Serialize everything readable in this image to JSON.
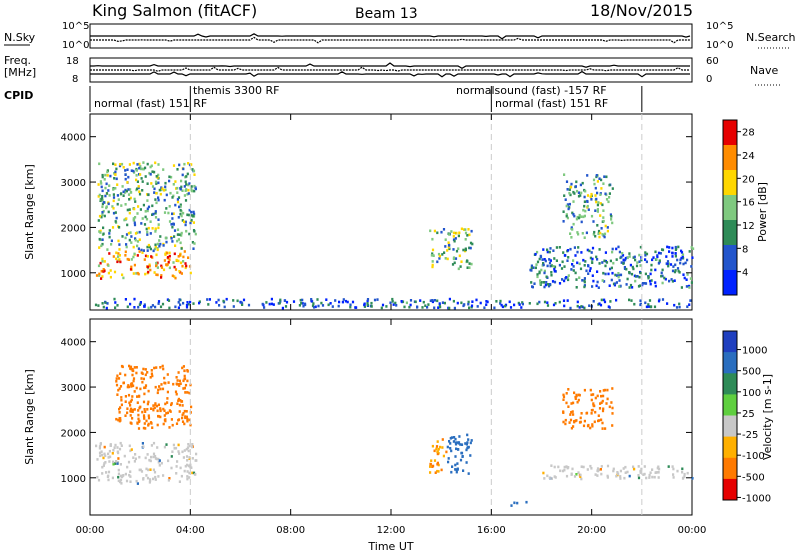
{
  "header": {
    "station": "King Salmon (fitACF)",
    "beam": "Beam 13",
    "date": "18/Nov/2015"
  },
  "status_panel": {
    "left_labels": [
      "N.Sky",
      "Freq.",
      "[MHz]",
      "CPID"
    ],
    "right_labels": [
      "N.Search",
      "Nave"
    ],
    "left_ticks": [
      "10^5",
      "10^0",
      "18",
      "8"
    ],
    "right_ticks": [
      "10^5",
      "10^0",
      "60",
      "0"
    ],
    "cpid_labels": [
      "normal (fast) 151 RF",
      "themis 3300 RF",
      "normalsound (fast) -157 RF",
      "normal (fast) 151 RF"
    ]
  },
  "chart_data": [
    {
      "type": "heatmap",
      "title": "Power",
      "ylabel": "Slant Range [km]",
      "xlabel": "",
      "x_ticks": [
        "00:00",
        "04:00",
        "08:00",
        "12:00",
        "16:00",
        "20:00",
        "00:00"
      ],
      "x_range_hours": [
        0,
        24
      ],
      "ylim": [
        180,
        4500
      ],
      "y_ticks": [
        1000,
        2000,
        3000,
        4000
      ],
      "colorbar": {
        "label": "Power [dB]",
        "ticks": [
          4,
          8,
          12,
          16,
          20,
          24,
          28
        ],
        "range": [
          0,
          30
        ],
        "colors": [
          "#0022ff",
          "#2255cc",
          "#2e8b57",
          "#7fc97f",
          "#ffd700",
          "#ff8c00",
          "#e60000"
        ]
      },
      "scatter_regions": [
        {
          "t": [
            0.2,
            4.0
          ],
          "r": [
            900,
            1500
          ],
          "value": 22
        },
        {
          "t": [
            0.3,
            4.2
          ],
          "r": [
            1500,
            3500
          ],
          "value": 12
        },
        {
          "t": [
            13.5,
            15.2
          ],
          "r": [
            1100,
            2000
          ],
          "value": 14
        },
        {
          "t": [
            17.5,
            24.0
          ],
          "r": [
            700,
            1600
          ],
          "value": 8
        },
        {
          "t": [
            18.8,
            20.8
          ],
          "r": [
            1800,
            3200
          ],
          "value": 12
        },
        {
          "t": [
            0.0,
            24.0
          ],
          "r": [
            250,
            450
          ],
          "value": 6
        }
      ],
      "mode_change_times": [
        4.0,
        16.0,
        22.0
      ]
    },
    {
      "type": "heatmap",
      "title": "Velocity",
      "ylabel": "Slant Range [km]",
      "xlabel": "Time UT",
      "x_ticks": [
        "00:00",
        "04:00",
        "08:00",
        "12:00",
        "16:00",
        "20:00",
        "00:00"
      ],
      "x_range_hours": [
        0,
        24
      ],
      "ylim": [
        180,
        4500
      ],
      "y_ticks": [
        1000,
        2000,
        3000,
        4000
      ],
      "colorbar": {
        "label": "Velocity [m s-1]",
        "ticks": [
          1000,
          500,
          100,
          25,
          -25,
          -100,
          -500,
          -1000
        ],
        "colors": [
          "#1f3fbf",
          "#2a6ebf",
          "#2e8b57",
          "#5fcf3f",
          "#c8c8c8",
          "#ffb000",
          "#ff7a00",
          "#e60000"
        ]
      },
      "scatter_regions": [
        {
          "t": [
            0.2,
            4.2
          ],
          "r": [
            900,
            1800
          ],
          "value": 0
        },
        {
          "t": [
            1.0,
            4.0
          ],
          "r": [
            2100,
            3500
          ],
          "value": -300
        },
        {
          "t": [
            13.5,
            14.2
          ],
          "r": [
            1100,
            1900
          ],
          "value": -100
        },
        {
          "t": [
            14.2,
            15.2
          ],
          "r": [
            1100,
            2000
          ],
          "value": 300
        },
        {
          "t": [
            18.0,
            24.0
          ],
          "r": [
            1000,
            1300
          ],
          "value": 0
        },
        {
          "t": [
            18.8,
            20.8
          ],
          "r": [
            2100,
            3000
          ],
          "value": -200
        },
        {
          "t": [
            16.5,
            17.5
          ],
          "r": [
            400,
            500
          ],
          "value": 200
        }
      ],
      "mode_change_times": [
        4.0,
        16.0,
        22.0
      ]
    }
  ],
  "colors": {
    "dashed_line": "#cccccc",
    "axis": "#000000"
  }
}
